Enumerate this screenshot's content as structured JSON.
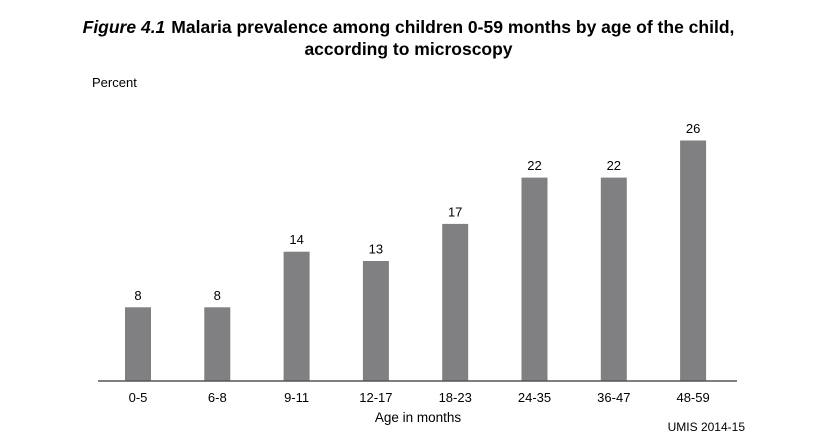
{
  "figure": {
    "number": "Figure 4.1",
    "title_line1": "Malaria prevalence among children 0-59 months by age of the child,",
    "title_line2": "according to microscopy",
    "source": "UMIS 2014-15"
  },
  "chart_data": {
    "type": "bar",
    "title": "Malaria prevalence among children 0-59 months by age of the child, according to microscopy",
    "xlabel": "Age in months",
    "ylabel": "Percent",
    "categories": [
      "0-5",
      "6-8",
      "9-11",
      "12-17",
      "18-23",
      "24-35",
      "36-47",
      "48-59"
    ],
    "values": [
      8,
      8,
      14,
      13,
      17,
      22,
      22,
      26
    ],
    "ylim": [
      0,
      30
    ],
    "grid": false,
    "legend": "none",
    "bar_color": "#808083",
    "bar_outline_color": "#ffffff",
    "axis_color": "#555555"
  }
}
